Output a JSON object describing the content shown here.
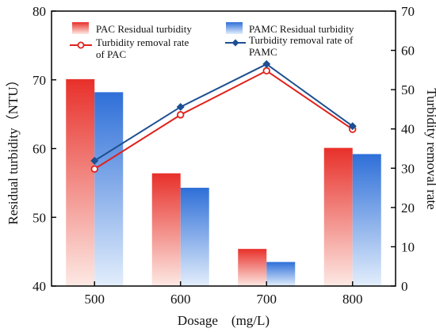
{
  "chart_data": {
    "type": "bar",
    "categories": [
      "500",
      "600",
      "700",
      "800"
    ],
    "xlabel": "Dosage　(mg/L)",
    "ylabel_left": "Residual turbidity（NTU）",
    "ylabel_right": "Turbidity removal rate",
    "ylim_left": [
      40,
      80
    ],
    "yticks_left": [
      "40",
      "50",
      "60",
      "70",
      "80"
    ],
    "ylim_right": [
      0,
      70
    ],
    "yticks_right": [
      "0",
      "10",
      "20",
      "30",
      "40",
      "50",
      "60",
      "70"
    ],
    "grid": false,
    "legend_position": "top",
    "bar_series": [
      {
        "name": "PAC Residual turbidity",
        "values": [
          70.1,
          56.4,
          45.4,
          60.1
        ],
        "color": "#e8302a"
      },
      {
        "name": "PAMC Residual turbidity",
        "values": [
          68.2,
          54.3,
          43.5,
          59.2
        ],
        "color": "#2e6fd8"
      }
    ],
    "line_series": [
      {
        "name": "Turbidity removal rate\nof PAC",
        "values": [
          29.8,
          43.6,
          54.8,
          39.9
        ],
        "color": "#e0211b",
        "marker": "circle"
      },
      {
        "name": "Turbidity removal rate of\nPAMC",
        "values": [
          31.9,
          45.6,
          56.5,
          40.7
        ],
        "color": "#1d4f91",
        "marker": "diamond"
      }
    ]
  }
}
